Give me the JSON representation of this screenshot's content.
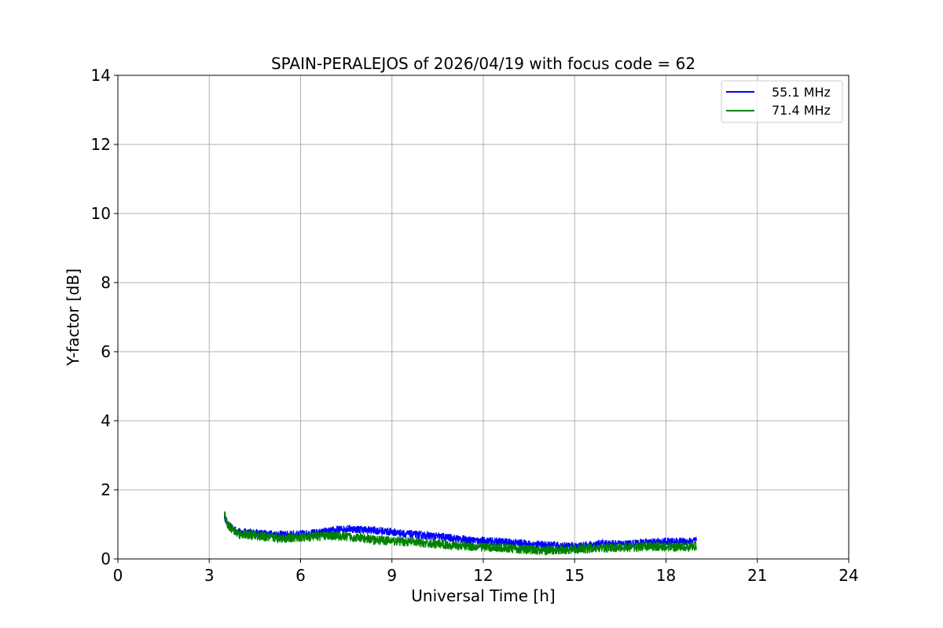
{
  "chart_data": {
    "type": "line",
    "title": "SPAIN-PERALEJOS of 2026/04/19 with focus code = 62",
    "xlabel": "Universal Time [h]",
    "ylabel": "Y-factor [dB]",
    "xlim": [
      0,
      24
    ],
    "ylim": [
      0,
      14
    ],
    "xticks": [
      0,
      3,
      6,
      9,
      12,
      15,
      18,
      21,
      24
    ],
    "yticks": [
      0,
      2,
      4,
      6,
      8,
      10,
      12,
      14
    ],
    "grid": true,
    "legend_position": "top-right",
    "series": [
      {
        "name": "55.1 MHz",
        "color": "#0000ff",
        "noise_band": 0.12,
        "x": [
          3.5,
          3.6,
          3.8,
          4.0,
          4.5,
          5.0,
          5.5,
          6.0,
          6.5,
          7.0,
          7.5,
          8.0,
          8.5,
          9.0,
          9.5,
          10.0,
          10.5,
          11.0,
          11.5,
          12.0,
          12.5,
          13.0,
          13.5,
          14.0,
          14.5,
          15.0,
          15.5,
          16.0,
          16.5,
          17.0,
          17.5,
          18.0,
          18.5,
          19.0
        ],
        "y": [
          1.25,
          1.0,
          0.85,
          0.78,
          0.75,
          0.72,
          0.7,
          0.72,
          0.75,
          0.8,
          0.88,
          0.85,
          0.82,
          0.78,
          0.72,
          0.68,
          0.65,
          0.6,
          0.55,
          0.52,
          0.5,
          0.47,
          0.43,
          0.4,
          0.38,
          0.36,
          0.4,
          0.45,
          0.42,
          0.45,
          0.48,
          0.5,
          0.5,
          0.52
        ]
      },
      {
        "name": "71.4 MHz",
        "color": "#008000",
        "noise_band": 0.14,
        "x": [
          3.5,
          3.6,
          3.8,
          4.0,
          4.5,
          5.0,
          5.5,
          6.0,
          6.5,
          7.0,
          7.5,
          8.0,
          8.5,
          9.0,
          9.5,
          10.0,
          10.5,
          11.0,
          11.5,
          12.0,
          12.5,
          13.0,
          13.5,
          14.0,
          14.5,
          15.0,
          15.5,
          16.0,
          16.5,
          17.0,
          17.5,
          18.0,
          18.5,
          19.0
        ],
        "y": [
          1.3,
          1.0,
          0.82,
          0.72,
          0.68,
          0.62,
          0.6,
          0.62,
          0.65,
          0.68,
          0.65,
          0.6,
          0.55,
          0.52,
          0.5,
          0.46,
          0.43,
          0.4,
          0.37,
          0.35,
          0.33,
          0.3,
          0.27,
          0.25,
          0.26,
          0.28,
          0.3,
          0.32,
          0.33,
          0.34,
          0.36,
          0.35,
          0.35,
          0.36
        ]
      }
    ]
  }
}
